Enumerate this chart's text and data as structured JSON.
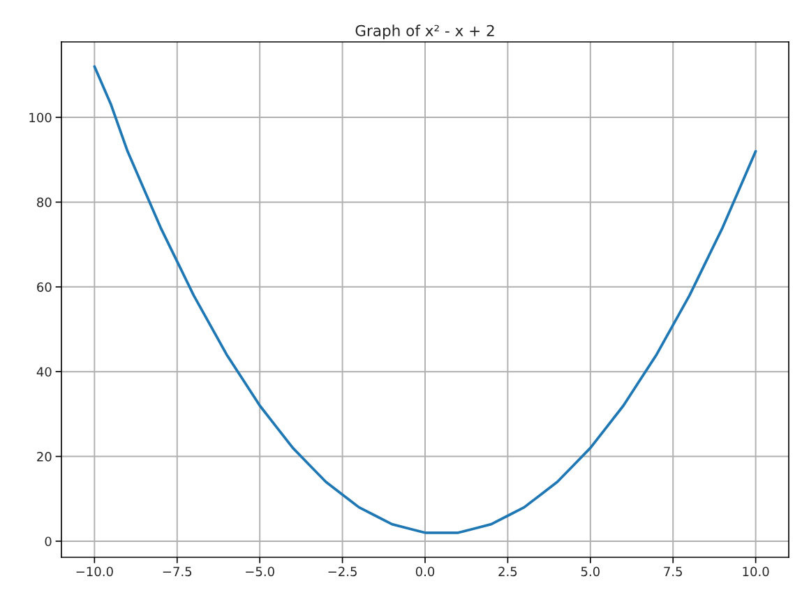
{
  "chart_data": {
    "type": "line",
    "title": "Graph of x² - x + 2",
    "x": [
      -10,
      -9.5,
      -9,
      -8.5,
      -8,
      -7.5,
      -7,
      -6.5,
      -6,
      -5.5,
      -5,
      -4.5,
      -4,
      -3.5,
      -3,
      -2.5,
      -2,
      -1.5,
      -1,
      -0.5,
      0,
      0.5,
      1,
      1.5,
      2,
      2.5,
      3,
      3.5,
      4,
      4.5,
      5,
      5.5,
      6,
      6.5,
      7,
      7.5,
      8,
      8.5,
      9,
      9.5,
      10
    ],
    "series": [
      {
        "color": "#1f77b4",
        "values": [
          112,
          103,
          92,
          83,
          74,
          66,
          58,
          51,
          44,
          38,
          32,
          27,
          22,
          18,
          14,
          11,
          8,
          6,
          4,
          3,
          2,
          2,
          2,
          3,
          4,
          6,
          8,
          11,
          14,
          18,
          22,
          27,
          32,
          38,
          44,
          51,
          58,
          66,
          74,
          83,
          92
        ]
      }
    ],
    "xlim": [
      -11,
      11
    ],
    "ylim": [
      -3.8,
      117.8
    ],
    "xticks": [
      {
        "value": -10,
        "label": "−10.0"
      },
      {
        "value": -7.5,
        "label": "−7.5"
      },
      {
        "value": -5,
        "label": "−5.0"
      },
      {
        "value": -2.5,
        "label": "−2.5"
      },
      {
        "value": 0,
        "label": "0.0"
      },
      {
        "value": 2.5,
        "label": "2.5"
      },
      {
        "value": 5,
        "label": "5.0"
      },
      {
        "value": 7.5,
        "label": "7.5"
      },
      {
        "value": 10,
        "label": "10.0"
      }
    ],
    "yticks": [
      0,
      20,
      40,
      60,
      80,
      100
    ],
    "grid": true,
    "marker": "none",
    "line_style": "solid"
  }
}
